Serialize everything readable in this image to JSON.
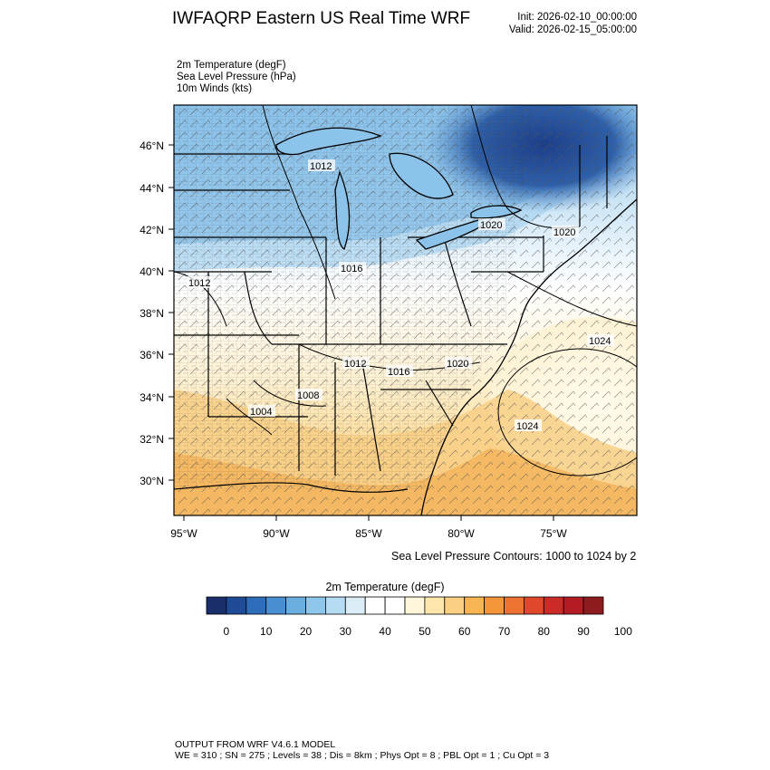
{
  "header": {
    "title": "IWFAQRP Eastern US Real Time WRF",
    "init": "Init: 2026-02-10_00:00:00",
    "valid": "Valid: 2026-02-15_05:00:00"
  },
  "fields": [
    "2m Temperature   (degF)",
    "Sea Level Pressure   (hPa)",
    "10m Winds   (kts)"
  ],
  "map": {
    "lat_labels": [
      "46°N",
      "44°N",
      "42°N",
      "40°N",
      "38°N",
      "36°N",
      "34°N",
      "32°N",
      "30°N"
    ],
    "lon_labels": [
      "95°W",
      "90°W",
      "85°W",
      "80°W",
      "75°W"
    ],
    "isobar_labels": [
      "1012",
      "1020",
      "1020",
      "1016",
      "1012",
      "1024",
      "1012",
      "1016",
      "1020",
      "1008",
      "1004",
      "1024"
    ],
    "colors": {
      "cold_deep": "#1c3f86",
      "cold": "#5aa2d9",
      "cool": "#bfe1f5",
      "neutral": "#ffffff",
      "mild": "#fdebbd",
      "warm": "#f9c779",
      "hot": "#f0a448"
    }
  },
  "slp_note": "Sea Level Pressure Contours: 1000 to 1024 by 2",
  "colorbar": {
    "title": "2m Temperature  (degF)",
    "labels": [
      "0",
      "10",
      "20",
      "30",
      "40",
      "50",
      "60",
      "70",
      "80",
      "90",
      "100"
    ],
    "colors": [
      "#1a2e6b",
      "#1f4b96",
      "#2e6db9",
      "#4a8fd1",
      "#6aaedf",
      "#8fc7ec",
      "#b6dcf4",
      "#dcedf8",
      "#ffffff",
      "#ffffff",
      "#fff6dc",
      "#fde7ad",
      "#fbd084",
      "#f8b554",
      "#f4973a",
      "#ec7331",
      "#e0472b",
      "#cc2a27",
      "#b21c22",
      "#8e1b1e"
    ]
  },
  "footer": {
    "line1": "OUTPUT FROM WRF V4.6.1 MODEL",
    "line2": "WE = 310 ; SN = 275 ; Levels = 38 ; Dis = 8km ; Phys Opt = 8 ; PBL Opt = 1 ; Cu Opt = 3"
  }
}
